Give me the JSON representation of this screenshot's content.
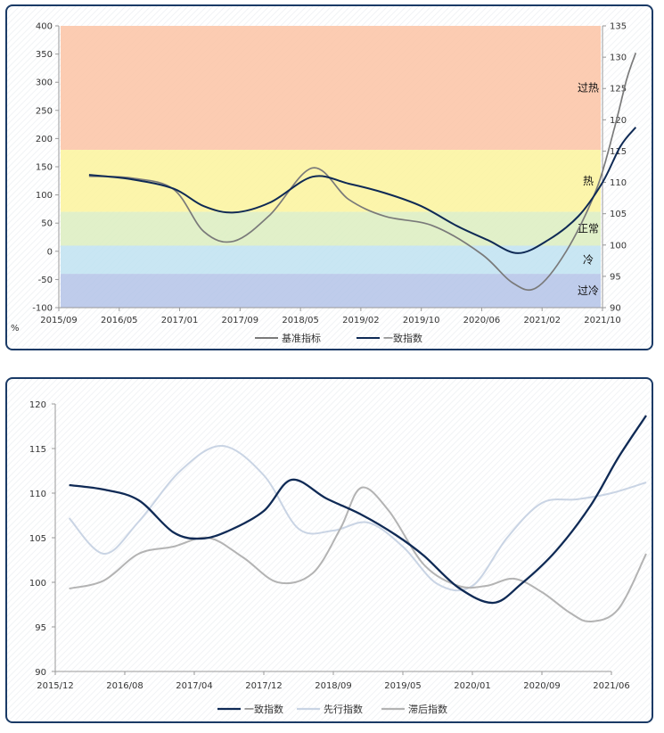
{
  "colors": {
    "border": "#1a3a66",
    "base_index": "#7a7a7a",
    "coincident": "#0f2a55",
    "leading": "#c9d4e4",
    "lagging": "#b3b3b3",
    "zone_overheat": "#fcc3a4",
    "zone_hot": "#fbf39c",
    "zone_normal": "#dcedc0",
    "zone_cold": "#bfe2f1",
    "zone_overcold": "#b4c3e8"
  },
  "chart_data": [
    {
      "type": "line",
      "unit_label": "%",
      "x_ticks": [
        "2015/09",
        "2016/05",
        "2017/01",
        "2017/09",
        "2018/05",
        "2019/02",
        "2019/10",
        "2020/06",
        "2021/02",
        "2021/10"
      ],
      "y_left": {
        "min": -100,
        "max": 400,
        "ticks": [
          -100,
          -50,
          0,
          50,
          100,
          150,
          200,
          250,
          300,
          350,
          400
        ]
      },
      "y_right": {
        "min": 90,
        "max": 135,
        "ticks": [
          90,
          95,
          100,
          105,
          110,
          115,
          120,
          125,
          130,
          135
        ]
      },
      "zones": [
        {
          "label": "过热",
          "from": 180,
          "to": 400
        },
        {
          "label": "热",
          "from": 70,
          "to": 180
        },
        {
          "label": "正常",
          "from": 10,
          "to": 70
        },
        {
          "label": "冷",
          "from": -40,
          "to": 10
        },
        {
          "label": "过冷",
          "from": -100,
          "to": -40
        }
      ],
      "legend_position": "bottom",
      "series": [
        {
          "name": "基准指标",
          "axis": "left",
          "points": [
            [
              0.5,
              133
            ],
            [
              1.2,
              130
            ],
            [
              1.9,
              110
            ],
            [
              2.4,
              35
            ],
            [
              2.9,
              18
            ],
            [
              3.5,
              65
            ],
            [
              4.2,
              148
            ],
            [
              4.8,
              92
            ],
            [
              5.4,
              62
            ],
            [
              6.2,
              45
            ],
            [
              7.0,
              -5
            ],
            [
              7.5,
              -55
            ],
            [
              7.9,
              -65
            ],
            [
              8.4,
              0
            ],
            [
              8.9,
              110
            ],
            [
              9.2,
              220
            ],
            [
              9.4,
              305
            ],
            [
              9.55,
              352
            ]
          ]
        },
        {
          "name": "一致指数",
          "axis": "right",
          "points": [
            [
              0.5,
              111.2
            ],
            [
              1.2,
              110.5
            ],
            [
              1.9,
              109.0
            ],
            [
              2.4,
              106.2
            ],
            [
              2.9,
              105.2
            ],
            [
              3.5,
              106.8
            ],
            [
              4.2,
              110.9
            ],
            [
              4.8,
              109.8
            ],
            [
              5.4,
              108.3
            ],
            [
              6.0,
              106.2
            ],
            [
              6.6,
              103.0
            ],
            [
              7.1,
              100.8
            ],
            [
              7.6,
              98.7
            ],
            [
              8.1,
              100.8
            ],
            [
              8.6,
              104.6
            ],
            [
              9.0,
              110.0
            ],
            [
              9.3,
              115.8
            ],
            [
              9.55,
              118.8
            ]
          ]
        }
      ]
    },
    {
      "type": "line",
      "x_ticks": [
        "2015/12",
        "2016/08",
        "2017/04",
        "2017/12",
        "2018/09",
        "2019/05",
        "2020/01",
        "2020/09",
        "2021/06"
      ],
      "y": {
        "min": 90,
        "max": 120,
        "ticks": [
          90,
          95,
          100,
          105,
          110,
          115,
          120
        ]
      },
      "legend_position": "bottom",
      "series": [
        {
          "name": "一致指数",
          "points": [
            [
              0.2,
              110.9
            ],
            [
              0.7,
              110.4
            ],
            [
              1.2,
              109.2
            ],
            [
              1.7,
              105.6
            ],
            [
              2.1,
              104.9
            ],
            [
              2.5,
              105.8
            ],
            [
              3.0,
              108.0
            ],
            [
              3.4,
              111.5
            ],
            [
              3.9,
              109.4
            ],
            [
              4.4,
              107.6
            ],
            [
              4.9,
              105.3
            ],
            [
              5.3,
              103.0
            ],
            [
              5.8,
              99.4
            ],
            [
              6.3,
              97.7
            ],
            [
              6.7,
              99.8
            ],
            [
              7.2,
              103.5
            ],
            [
              7.7,
              108.6
            ],
            [
              8.1,
              114.0
            ],
            [
              8.5,
              118.7
            ]
          ]
        },
        {
          "name": "先行指数",
          "points": [
            [
              0.2,
              107.2
            ],
            [
              0.7,
              103.2
            ],
            [
              1.2,
              106.8
            ],
            [
              1.8,
              112.5
            ],
            [
              2.4,
              115.3
            ],
            [
              3.0,
              112.0
            ],
            [
              3.5,
              106.0
            ],
            [
              4.0,
              105.8
            ],
            [
              4.5,
              106.7
            ],
            [
              5.0,
              104.0
            ],
            [
              5.5,
              99.8
            ],
            [
              6.0,
              99.6
            ],
            [
              6.5,
              105.0
            ],
            [
              7.0,
              108.9
            ],
            [
              7.5,
              109.3
            ],
            [
              8.0,
              110.0
            ],
            [
              8.5,
              111.2
            ]
          ]
        },
        {
          "name": "滞后指数",
          "points": [
            [
              0.2,
              99.3
            ],
            [
              0.7,
              100.2
            ],
            [
              1.2,
              103.2
            ],
            [
              1.7,
              104.0
            ],
            [
              2.2,
              105.0
            ],
            [
              2.7,
              102.8
            ],
            [
              3.2,
              100.0
            ],
            [
              3.7,
              101.0
            ],
            [
              4.1,
              106.0
            ],
            [
              4.4,
              110.6
            ],
            [
              4.8,
              108.0
            ],
            [
              5.3,
              102.0
            ],
            [
              5.8,
              99.6
            ],
            [
              6.2,
              99.6
            ],
            [
              6.6,
              100.4
            ],
            [
              7.0,
              98.9
            ],
            [
              7.4,
              96.6
            ],
            [
              7.7,
              95.6
            ],
            [
              8.1,
              97.0
            ],
            [
              8.5,
              103.2
            ]
          ]
        }
      ]
    }
  ]
}
